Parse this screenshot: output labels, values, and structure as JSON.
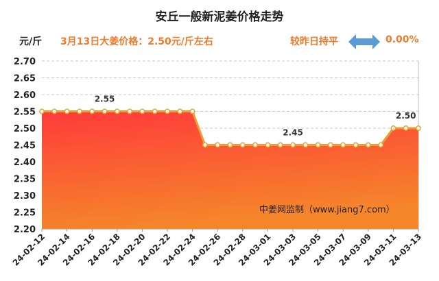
{
  "header": {
    "title": "安丘一般新泥姜价格走势",
    "unit": "元/斤",
    "price_note": "3月13日大姜价格：2.50元/斤左右",
    "change_label": "较昨日持平",
    "change_value": "0.00%"
  },
  "icons": {
    "change": "double-arrow-icon"
  },
  "colors": {
    "accent": "#f07a2a",
    "line": "#e8a035",
    "area_top": "#ff3b3b",
    "area_bottom": "#f5862a",
    "arrow": "#5b9bd5"
  },
  "watermark": "中姜网监制（www.jiang7.com）",
  "chart_data": {
    "type": "area",
    "title": "安丘一般新泥姜价格走势",
    "ylabel": "元/斤",
    "ylim": [
      2.2,
      2.7
    ],
    "yticks": [
      "2.20",
      "2.25",
      "2.30",
      "2.35",
      "2.40",
      "2.45",
      "2.50",
      "2.55",
      "2.60",
      "2.65",
      "2.70"
    ],
    "xticks": [
      "24-02-12",
      "24-02-14",
      "24-02-16",
      "24-02-18",
      "24-02-20",
      "24-02-22",
      "24-02-24",
      "24-02-26",
      "24-02-28",
      "24-03-01",
      "24-03-03",
      "24-03-05",
      "24-03-07",
      "24-03-09",
      "24-03-11",
      "24-03-13"
    ],
    "x": [
      "24-02-12",
      "24-02-13",
      "24-02-14",
      "24-02-15",
      "24-02-16",
      "24-02-17",
      "24-02-18",
      "24-02-19",
      "24-02-20",
      "24-02-21",
      "24-02-22",
      "24-02-23",
      "24-02-24",
      "24-02-25",
      "24-02-26",
      "24-02-27",
      "24-02-28",
      "24-02-29",
      "24-03-01",
      "24-03-02",
      "24-03-03",
      "24-03-04",
      "24-03-05",
      "24-03-06",
      "24-03-07",
      "24-03-08",
      "24-03-09",
      "24-03-10",
      "24-03-11",
      "24-03-12",
      "24-03-13"
    ],
    "values": [
      2.55,
      2.55,
      2.55,
      2.55,
      2.55,
      2.55,
      2.55,
      2.55,
      2.55,
      2.55,
      2.55,
      2.55,
      2.55,
      2.45,
      2.45,
      2.45,
      2.45,
      2.45,
      2.45,
      2.45,
      2.45,
      2.45,
      2.45,
      2.45,
      2.45,
      2.45,
      2.45,
      2.45,
      2.5,
      2.5,
      2.5
    ],
    "data_labels": [
      {
        "x": "24-02-17",
        "text": "2.55"
      },
      {
        "x": "24-03-03",
        "text": "2.45"
      },
      {
        "x": "24-03-12",
        "text": "2.50"
      }
    ],
    "grid": true
  }
}
